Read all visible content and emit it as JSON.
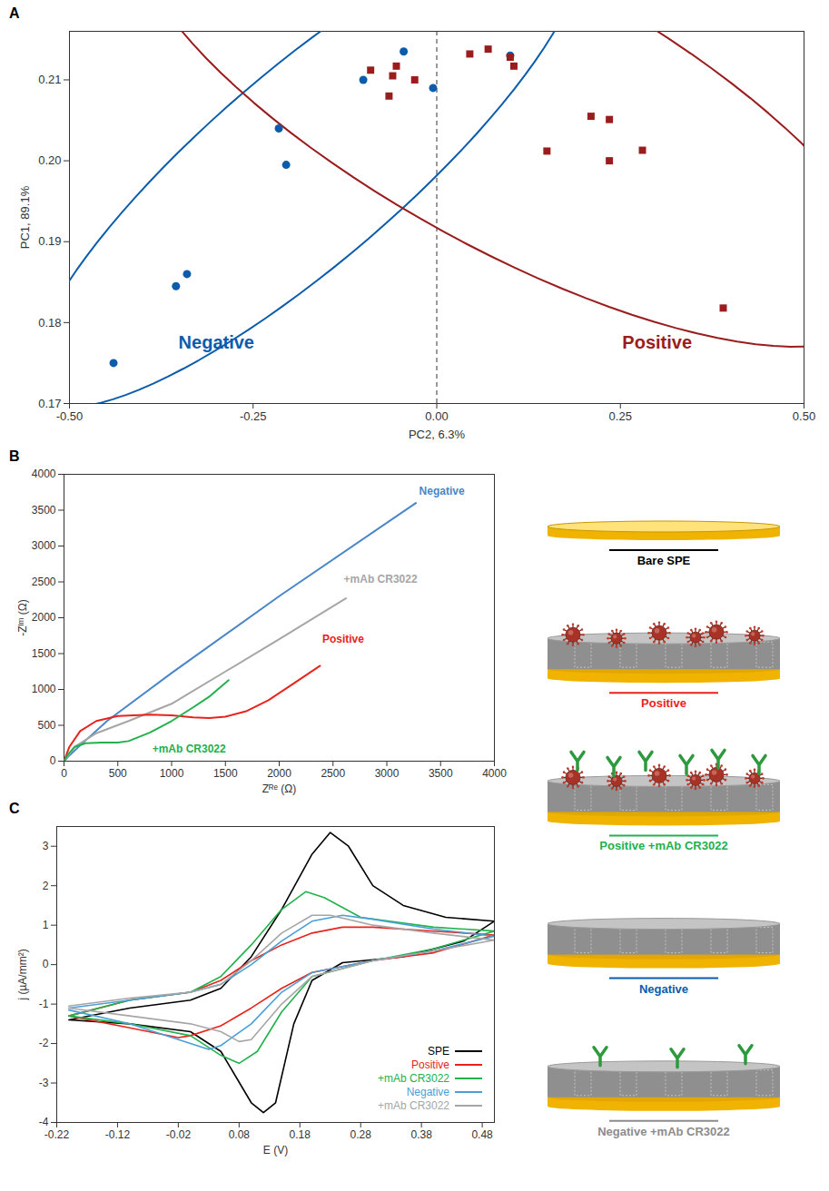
{
  "chart_data": [
    {
      "panel": "A",
      "type": "scatter",
      "x_label": "PC2, 6.3%",
      "y_label": "PC1, 89.1%",
      "xlim": [
        -0.5,
        0.5
      ],
      "xticks": [
        {
          "value": -0.5,
          "label": "-0.50"
        },
        -0.25,
        {
          "value": 0,
          "label": "0.00"
        },
        0.25,
        {
          "value": 0.5,
          "label": "0.50"
        }
      ],
      "ylim": [
        0.17,
        0.216
      ],
      "yticks": [
        0.17,
        0.18,
        0.19,
        {
          "value": 0.2,
          "label": "0.20"
        },
        0.21
      ],
      "reference_x": 0,
      "grid": false,
      "series": [
        {
          "name": "Negative",
          "color": "#0b5cad",
          "marker": "circle",
          "label_at": [
            -0.3,
            0.1775
          ],
          "x": [
            -0.44,
            -0.355,
            -0.34,
            -0.205,
            -0.215,
            -0.1,
            -0.045,
            -0.005,
            0.1
          ],
          "values": [
            0.175,
            0.1845,
            0.186,
            0.1995,
            0.204,
            0.21,
            0.2135,
            0.209,
            0.213
          ]
        },
        {
          "name": "Positive",
          "color": "#9b1c1c",
          "marker": "square",
          "label_at": [
            0.3,
            0.1775
          ],
          "x": [
            -0.09,
            -0.065,
            -0.06,
            -0.055,
            -0.03,
            0.045,
            0.07,
            0.1,
            0.105,
            0.15,
            0.21,
            0.235,
            0.235,
            0.28,
            0.39
          ],
          "values": [
            0.2112,
            0.208,
            0.2105,
            0.2117,
            0.21,
            0.2132,
            0.2138,
            0.2128,
            0.2117,
            0.2012,
            0.2055,
            0.2051,
            0.2,
            0.2013,
            0.1818
          ]
        }
      ]
    },
    {
      "panel": "B",
      "type": "line",
      "x_label": "Zᴿᵉ (Ω)",
      "y_label": "-Zᴵᵐ (Ω)",
      "xlim": [
        0,
        4000
      ],
      "xticks": [
        0,
        500,
        1000,
        1500,
        2000,
        2500,
        3000,
        3500,
        4000
      ],
      "ylim": [
        0,
        4000
      ],
      "yticks": [
        0,
        500,
        1000,
        1500,
        2000,
        2500,
        3000,
        3500,
        4000
      ],
      "grid": false,
      "series": [
        {
          "name": "Negative",
          "color": "#4a86c8",
          "label_at": [
            3300,
            3760
          ],
          "x": [
            0,
            50,
            150,
            400,
            1000,
            2000,
            3270
          ],
          "values": [
            0,
            80,
            220,
            560,
            1230,
            2300,
            3600
          ]
        },
        {
          "name": "+mAb CR3022",
          "color": "#a6a6a6",
          "label_at": [
            2600,
            2530
          ],
          "x": [
            0,
            100,
            300,
            600,
            1000,
            1500,
            2000,
            2620
          ],
          "values": [
            0,
            200,
            390,
            560,
            800,
            1250,
            1700,
            2270
          ]
        },
        {
          "name": "Positive",
          "color": "#e8231c",
          "label_at": [
            2400,
            1700
          ],
          "x": [
            0,
            50,
            150,
            300,
            500,
            800,
            1000,
            1200,
            1350,
            1500,
            1700,
            1900,
            2100,
            2380
          ],
          "values": [
            0,
            200,
            420,
            560,
            630,
            650,
            640,
            610,
            600,
            620,
            700,
            850,
            1050,
            1330
          ]
        },
        {
          "name": "+mAb CR3022",
          "color": "#22b14c",
          "label_at": [
            820,
            170
          ],
          "x": [
            0,
            40,
            100,
            200,
            350,
            500,
            600,
            800,
            1000,
            1200,
            1350,
            1530
          ],
          "values": [
            0,
            100,
            200,
            250,
            260,
            260,
            280,
            400,
            560,
            750,
            900,
            1130
          ]
        }
      ]
    },
    {
      "panel": "C",
      "type": "line",
      "x_label": "E (V)",
      "y_label": "j (µA/mm²)",
      "xlim": [
        -0.22,
        0.5
      ],
      "xticks": [
        -0.22,
        -0.12,
        -0.02,
        0.08,
        0.18,
        0.28,
        0.38,
        0.48
      ],
      "ylim": [
        -4,
        3.5
      ],
      "yticks": [
        -4,
        -3,
        -2,
        -1,
        0,
        1,
        2,
        3
      ],
      "grid": false,
      "legend": "bottom-right",
      "series": [
        {
          "name": "SPE",
          "color": "#000000",
          "x": [
            -0.2,
            -0.1,
            0,
            0.05,
            0.1,
            0.15,
            0.2,
            0.23,
            0.26,
            0.3,
            0.35,
            0.42,
            0.5,
            0.45,
            0.35,
            0.25,
            0.2,
            0.17,
            0.14,
            0.12,
            0.1,
            0.05,
            0,
            -0.1,
            -0.2
          ],
          "values": [
            -1.4,
            -1.1,
            -0.9,
            -0.6,
            0.2,
            1.4,
            2.8,
            3.35,
            3.0,
            2.0,
            1.5,
            1.2,
            1.1,
            0.6,
            0.2,
            0.05,
            -0.4,
            -1.5,
            -3.5,
            -3.75,
            -3.5,
            -2.2,
            -1.7,
            -1.5,
            -1.4
          ]
        },
        {
          "name": "Positive",
          "color": "#e8231c",
          "x": [
            -0.2,
            -0.1,
            0,
            0.05,
            0.1,
            0.15,
            0.2,
            0.25,
            0.3,
            0.4,
            0.5,
            0.4,
            0.3,
            0.2,
            0.15,
            0.1,
            0.05,
            0,
            -0.02,
            -0.1,
            -0.2
          ],
          "values": [
            -1.3,
            -0.9,
            -0.7,
            -0.4,
            0.1,
            0.5,
            0.8,
            0.95,
            0.95,
            0.85,
            0.75,
            0.3,
            0.1,
            -0.2,
            -0.6,
            -1.1,
            -1.55,
            -1.8,
            -1.85,
            -1.6,
            -1.3
          ]
        },
        {
          "name": "+mAb CR3022",
          "color": "#22b14c",
          "x": [
            -0.2,
            -0.1,
            0,
            0.05,
            0.1,
            0.15,
            0.19,
            0.22,
            0.28,
            0.4,
            0.5,
            0.4,
            0.3,
            0.2,
            0.15,
            0.11,
            0.08,
            0.05,
            0,
            -0.1,
            -0.2
          ],
          "values": [
            -1.3,
            -0.9,
            -0.7,
            -0.3,
            0.5,
            1.4,
            1.85,
            1.7,
            1.2,
            0.95,
            0.85,
            0.4,
            0.1,
            -0.3,
            -1.2,
            -2.2,
            -2.5,
            -2.3,
            -1.8,
            -1.5,
            -1.3
          ]
        },
        {
          "name": "Negative",
          "color": "#4a9fd8",
          "x": [
            -0.2,
            -0.1,
            0,
            0.05,
            0.1,
            0.15,
            0.2,
            0.25,
            0.3,
            0.4,
            0.5,
            0.4,
            0.3,
            0.2,
            0.15,
            0.1,
            0.05,
            0.03,
            0,
            -0.1,
            -0.2
          ],
          "values": [
            -1.1,
            -0.9,
            -0.7,
            -0.5,
            0,
            0.6,
            1.1,
            1.25,
            1.15,
            0.9,
            0.72,
            0.35,
            0.1,
            -0.2,
            -0.7,
            -1.5,
            -2.05,
            -2.15,
            -2.0,
            -1.5,
            -1.15
          ]
        },
        {
          "name": "+mAb CR3022",
          "color": "#a6a6a6",
          "x": [
            -0.2,
            -0.1,
            0,
            0.05,
            0.1,
            0.15,
            0.2,
            0.23,
            0.3,
            0.4,
            0.5,
            0.4,
            0.3,
            0.2,
            0.15,
            0.1,
            0.08,
            0.05,
            0,
            -0.1,
            -0.2
          ],
          "values": [
            -1.05,
            -0.85,
            -0.7,
            -0.5,
            0.1,
            0.8,
            1.25,
            1.25,
            1.0,
            0.8,
            0.62,
            0.35,
            0.1,
            -0.3,
            -1.0,
            -1.9,
            -1.95,
            -1.7,
            -1.5,
            -1.3,
            -1.1
          ]
        }
      ]
    }
  ],
  "diagram": {
    "items": [
      {
        "label": "Bare SPE",
        "color": "#000000"
      },
      {
        "label": "Positive",
        "color": "#e8231c"
      },
      {
        "label": "Positive +mAb CR3022",
        "color": "#22b14c"
      },
      {
        "label": "Negative",
        "color": "#0b5cad"
      },
      {
        "label": "Negative +mAb CR3022",
        "color": "#8c8c8c"
      }
    ]
  }
}
